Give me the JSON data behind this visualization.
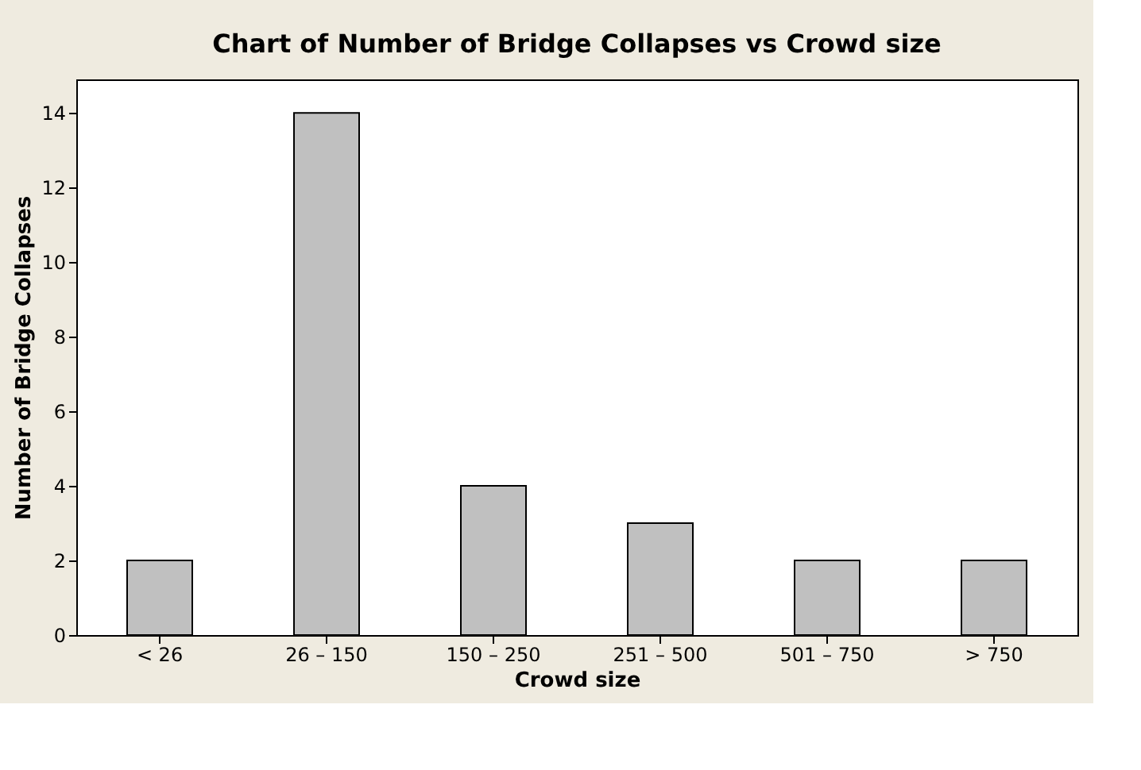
{
  "chart_data": {
    "type": "bar",
    "title": "Chart of Number of Bridge Collapses vs Crowd size",
    "xlabel": "Crowd size",
    "ylabel": "Number of Bridge Collapses",
    "categories": [
      "< 26",
      "26 – 150",
      "150 – 250",
      "251 – 500",
      "501 – 750",
      "> 750"
    ],
    "values": [
      2,
      14,
      4,
      3,
      2,
      2
    ],
    "color": "#c0c0c0",
    "ylim": [
      0,
      14.9
    ],
    "yticks": [
      0,
      2,
      4,
      6,
      8,
      10,
      12,
      14
    ],
    "grid": false
  }
}
